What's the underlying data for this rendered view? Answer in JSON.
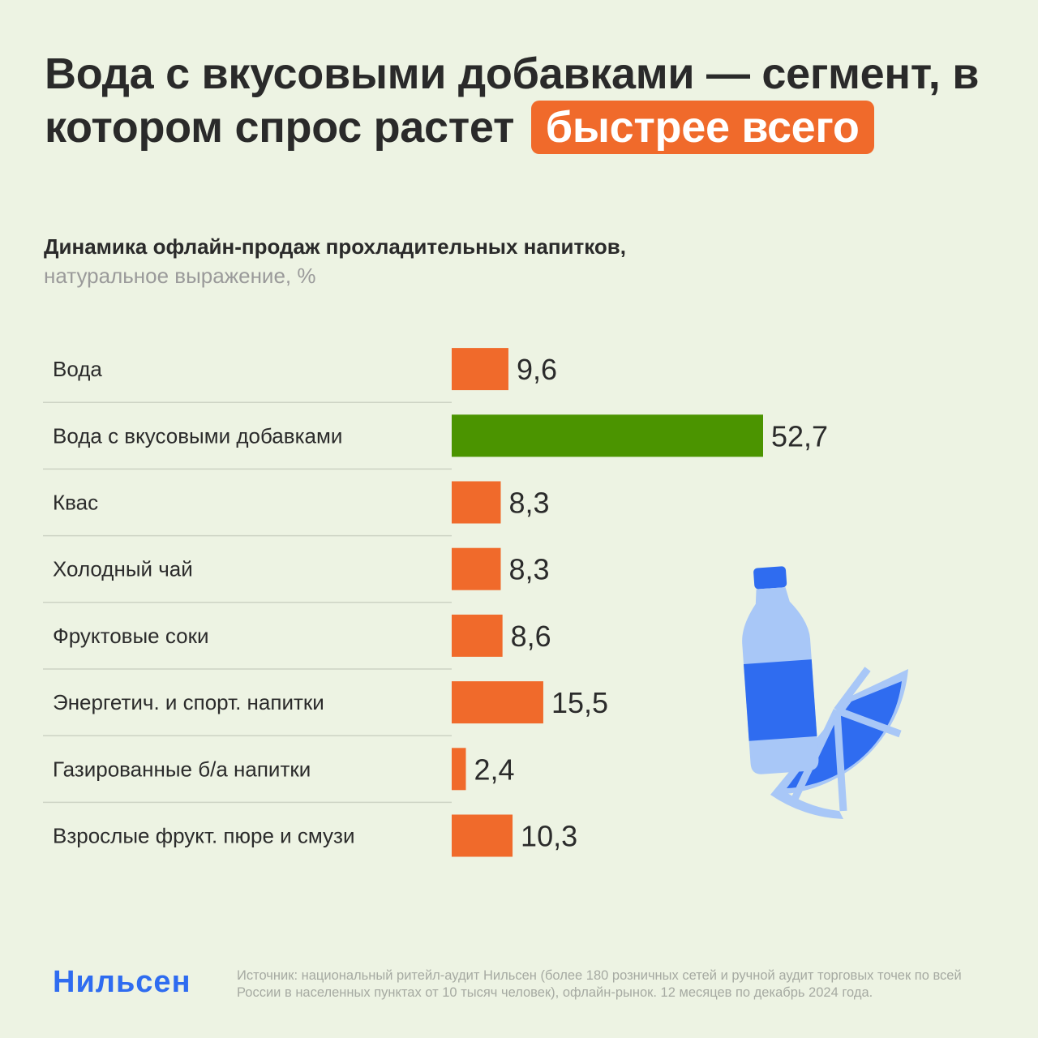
{
  "headline": {
    "text": "Вода с вкусовыми добавками — сегмент, в котором спрос растет",
    "highlight": "быстрее всего"
  },
  "subtitle": {
    "bold": "Динамика офлайн-продаж прохладительных напитков,",
    "light": "натуральное выражение, %"
  },
  "chart_data": {
    "type": "bar",
    "orientation": "horizontal",
    "categories": [
      "Вода",
      "Вода с вкусовыми добавками",
      "Квас",
      "Холодный чай",
      "Фруктовые соки",
      "Энергетич. и спорт. напитки",
      "Газированные б/а напитки",
      "Взрослые фрукт. пюре и смузи"
    ],
    "values": [
      9.6,
      52.7,
      8.3,
      8.3,
      8.6,
      15.5,
      2.4,
      10.3
    ],
    "value_labels": [
      "9,6",
      "52,7",
      "8,3",
      "8,3",
      "8,6",
      "15,5",
      "2,4",
      "10,3"
    ],
    "highlight_index": 1,
    "colors": {
      "default": "#f06a2b",
      "highlight": "#4b9400",
      "divider": "#cdd3c4"
    }
  },
  "illustration": {
    "icon": "bottle-and-citrus-icon",
    "colors": {
      "dark": "#2f6cf0",
      "light": "#a8c7f7"
    }
  },
  "footer": {
    "logo": "Нильсен",
    "source": "Источник: национальный ритейл-аудит Нильсен (более 180 розничных сетей и ручной аудит торговых точек по всей России в населенных пунктах от 10 тысяч человек), офлайн-рынок. 12 месяцев по декабрь 2024 года."
  }
}
